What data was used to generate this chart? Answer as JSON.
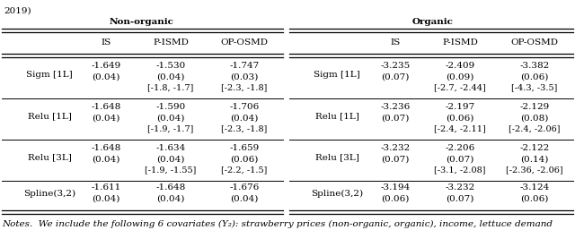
{
  "title_left": "Non-organic",
  "title_right": "Organic",
  "col_headers": [
    "IS",
    "P-ISMD",
    "OP-OSMD"
  ],
  "rows_left": [
    {
      "label": "Sigm [1L]",
      "main": [
        "-1.649",
        "-1.530",
        "-1.747"
      ],
      "se": [
        "(0.04)",
        "(0.04)",
        "(0.03)"
      ],
      "ci": [
        "",
        "[-1.8, -1.7]",
        "[-2.3, -1.8]"
      ]
    },
    {
      "label": "Relu [1L]",
      "main": [
        "-1.648",
        "-1.590",
        "-1.706"
      ],
      "se": [
        "(0.04)",
        "(0.04)",
        "(0.04)"
      ],
      "ci": [
        "",
        "[-1.9, -1.7]",
        "[-2.3, -1.8]"
      ]
    },
    {
      "label": "Relu [3L]",
      "main": [
        "-1.648",
        "-1.634",
        "-1.659"
      ],
      "se": [
        "(0.04)",
        "(0.04)",
        "(0.06)"
      ],
      "ci": [
        "",
        "[-1.9, -1.55]",
        "[-2.2, -1.5]"
      ]
    },
    {
      "label": "Spline(3,2)",
      "main": [
        "-1.611",
        "-1.648",
        "-1.676"
      ],
      "se": [
        "(0.04)",
        "(0.04)",
        "(0.04)"
      ],
      "ci": [
        "",
        "",
        ""
      ]
    }
  ],
  "rows_right": [
    {
      "label": "Sigm [1L]",
      "main": [
        "-3.235",
        "-2.409",
        "-3.382"
      ],
      "se": [
        "(0.07)",
        "(0.09)",
        "(0.06)"
      ],
      "ci": [
        "",
        "[-2.7, -2.44]",
        "[-4.3, -3.5]"
      ]
    },
    {
      "label": "Relu [1L]",
      "main": [
        "-3.236",
        "-2.197",
        "-2.129"
      ],
      "se": [
        "(0.07)",
        "(0.06)",
        "(0.08)"
      ],
      "ci": [
        "",
        "[-2.4, -2.11]",
        "[-2.4, -2.06]"
      ]
    },
    {
      "label": "Relu [3L]",
      "main": [
        "-3.232",
        "-2.206",
        "-2.122"
      ],
      "se": [
        "(0.07)",
        "(0.07)",
        "(0.14)"
      ],
      "ci": [
        "",
        "[-3.1, -2.08]",
        "[-2.36, -2.06]"
      ]
    },
    {
      "label": "Spline(3,2)",
      "main": [
        "-3.194",
        "-3.232",
        "-3.124"
      ],
      "se": [
        "(0.06)",
        "(0.07)",
        "(0.06)"
      ],
      "ci": [
        "",
        "",
        ""
      ]
    }
  ],
  "note": "Notes.  We include the following 6 covariates (Y₂): strawberry prices (non-organic, organic), income, lettuce demand",
  "header_top": "2019)",
  "font_size_main": 7.5,
  "font_size_ci": 7.0,
  "font_size_note": 7.5
}
